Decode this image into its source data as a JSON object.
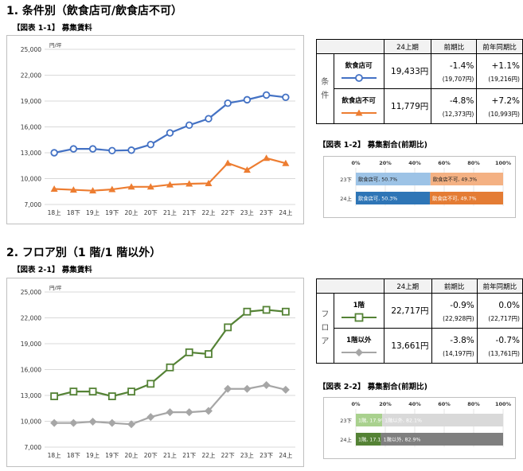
{
  "section1": {
    "title": "1. 条件別（飲食店可/飲食店不可）",
    "fig_line": "【図表 1-1】 募集賃料",
    "fig_bar": "【図表 1-2】 募集割合(前期比)",
    "table": {
      "side_label": [
        "条",
        "件"
      ],
      "headers": [
        "24上期",
        "前期比",
        "前年同期比"
      ],
      "rows": [
        {
          "name": "飲食店可",
          "value": "19,433円",
          "qoq": "-1.4%",
          "qoq_prev": "(19,707円)",
          "yoy": "+1.1%",
          "yoy_prev": "(19,216円)"
        },
        {
          "name": "飲食店不可",
          "value": "11,779円",
          "qoq": "-4.8%",
          "qoq_prev": "(12,373円)",
          "yoy": "+7.2%",
          "yoy_prev": "(10,993円)"
        }
      ]
    }
  },
  "section2": {
    "title": "2. フロア別（1 階/1 階以外）",
    "fig_line": "【図表 2-1】 募集賃料",
    "fig_bar": "【図表 2-2】 募集割合(前期比)",
    "table": {
      "side_label": [
        "フ",
        "ロ",
        "ア"
      ],
      "headers": [
        "24上期",
        "前期比",
        "前年同期比"
      ],
      "rows": [
        {
          "name": "1階",
          "value": "22,717円",
          "qoq": "-0.9%",
          "qoq_prev": "(22,928円)",
          "yoy": "0.0%",
          "yoy_prev": "(22,717円)"
        },
        {
          "name": "1階以外",
          "value": "13,661円",
          "qoq": "-3.8%",
          "qoq_prev": "(14,197円)",
          "yoy": "-0.7%",
          "yoy_prev": "(13,761円)"
        }
      ]
    }
  },
  "colors": {
    "blue": "#4472c4",
    "orange": "#ed7d31",
    "green": "#548235",
    "gray": "#a6a6a6",
    "light_blue": "#9dc3e6",
    "mid_blue": "#2e75b6",
    "light_orange": "#f4b183",
    "mid_orange": "#e47c34",
    "light_green": "#a9d18e",
    "dark_green": "#548235",
    "light_gray": "#d9d9d9",
    "dark_gray": "#7f7f7f"
  },
  "chart_data": [
    {
      "type": "line",
      "ylabel": "円/坪",
      "ylim": [
        7000,
        25000
      ],
      "yticks": [
        "7,000",
        "10,000",
        "13,000",
        "16,000",
        "19,000",
        "22,000",
        "25,000"
      ],
      "categories": [
        "18上",
        "18下",
        "19上",
        "19下",
        "20上",
        "20下",
        "21上",
        "21下",
        "22上",
        "22下",
        "23上",
        "23下",
        "24上"
      ],
      "series": [
        {
          "name": "飲食店可",
          "color": "#4472c4",
          "marker": "circle",
          "values": [
            13000,
            13450,
            13450,
            13250,
            13300,
            13950,
            15300,
            16200,
            16950,
            18750,
            19150,
            19700,
            19433
          ]
        },
        {
          "name": "飲食店不可",
          "color": "#ed7d31",
          "marker": "triangle",
          "values": [
            8800,
            8700,
            8600,
            8750,
            9050,
            9050,
            9300,
            9400,
            9450,
            11800,
            11000,
            12373,
            11779
          ]
        }
      ]
    },
    {
      "type": "bar",
      "stacked": "100%",
      "xticks": [
        "0%",
        "20%",
        "40%",
        "60%",
        "80%",
        "100%"
      ],
      "categories": [
        "23下",
        "24上"
      ],
      "series": [
        {
          "name": "飲食店可",
          "values": [
            50.7,
            50.3
          ],
          "labels": [
            "飲食店可, 50.7%",
            "飲食店可, 50.3%"
          ]
        },
        {
          "name": "飲食店不可",
          "values": [
            49.3,
            49.7
          ],
          "labels": [
            "飲食店不可, 49.3%",
            "飲食店不可, 49.7%"
          ]
        }
      ]
    },
    {
      "type": "line",
      "ylabel": "円/坪",
      "ylim": [
        7000,
        25000
      ],
      "yticks": [
        "7,000",
        "10,000",
        "13,000",
        "16,000",
        "19,000",
        "22,000",
        "25,000"
      ],
      "categories": [
        "18上",
        "18下",
        "19上",
        "19下",
        "20上",
        "20下",
        "21上",
        "21下",
        "22上",
        "22下",
        "23上",
        "23下",
        "24上"
      ],
      "series": [
        {
          "name": "1階",
          "color": "#548235",
          "marker": "square",
          "values": [
            12900,
            13450,
            13450,
            12900,
            13450,
            14350,
            16250,
            18000,
            17800,
            20900,
            22717,
            22928,
            22717
          ]
        },
        {
          "name": "1階以外",
          "color": "#a6a6a6",
          "marker": "diamond",
          "values": [
            9800,
            9800,
            9950,
            9800,
            9650,
            10500,
            11050,
            11050,
            11200,
            13761,
            13761,
            14197,
            13661
          ]
        }
      ]
    },
    {
      "type": "bar",
      "stacked": "100%",
      "xticks": [
        "0%",
        "20%",
        "40%",
        "60%",
        "80%",
        "100%"
      ],
      "categories": [
        "23下",
        "24上"
      ],
      "series": [
        {
          "name": "1階",
          "values": [
            17.9,
            17.1
          ],
          "labels": [
            "1階, 17.9%",
            "1階, 17.1%"
          ]
        },
        {
          "name": "1階以外",
          "values": [
            82.1,
            82.9
          ],
          "labels": [
            "1階以外, 82.1%",
            "1階以外, 82.9%"
          ]
        }
      ]
    }
  ]
}
